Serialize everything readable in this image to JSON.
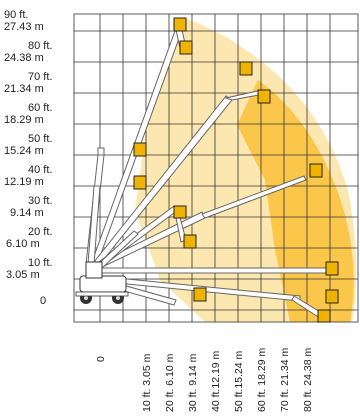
{
  "colors": {
    "outer_envelope": "#fde7b0",
    "inner_envelope": "#fbc74a",
    "inner_envelope_dark": "#f5b52a",
    "grid": "#333333",
    "boom": "#ffffff",
    "boom_outline": "#555555",
    "platform": "#f0b400"
  },
  "y_axis": {
    "labels": [
      {
        "ft": "90 ft.",
        "m": "27.43  m"
      },
      {
        "ft": "80 ft.",
        "m": "24.38  m"
      },
      {
        "ft": "70 ft.",
        "m": "21.34  m"
      },
      {
        "ft": "60 ft.",
        "m": "18.29  m"
      },
      {
        "ft": "50 ft.",
        "m": "15.24  m"
      },
      {
        "ft": "40 ft.",
        "m": "12.19  m"
      },
      {
        "ft": "30 ft.",
        "m": "9.14  m"
      },
      {
        "ft": "20 ft.",
        "m": "6.10  m"
      },
      {
        "ft": "10 ft.",
        "m": "3.05  m"
      },
      {
        "ft": "0",
        "m": ""
      }
    ]
  },
  "x_axis": {
    "labels": [
      "0",
      "10 ft. 3.05 m",
      "20 ft. 6.10 m",
      "30 ft. 9.14 m",
      "40 ft.12.19 m",
      "50 ft.15.24 m",
      "60 ft. 18.29 m",
      "70 ft. 21.34 m",
      "80 ft. 24.38 m"
    ]
  }
}
